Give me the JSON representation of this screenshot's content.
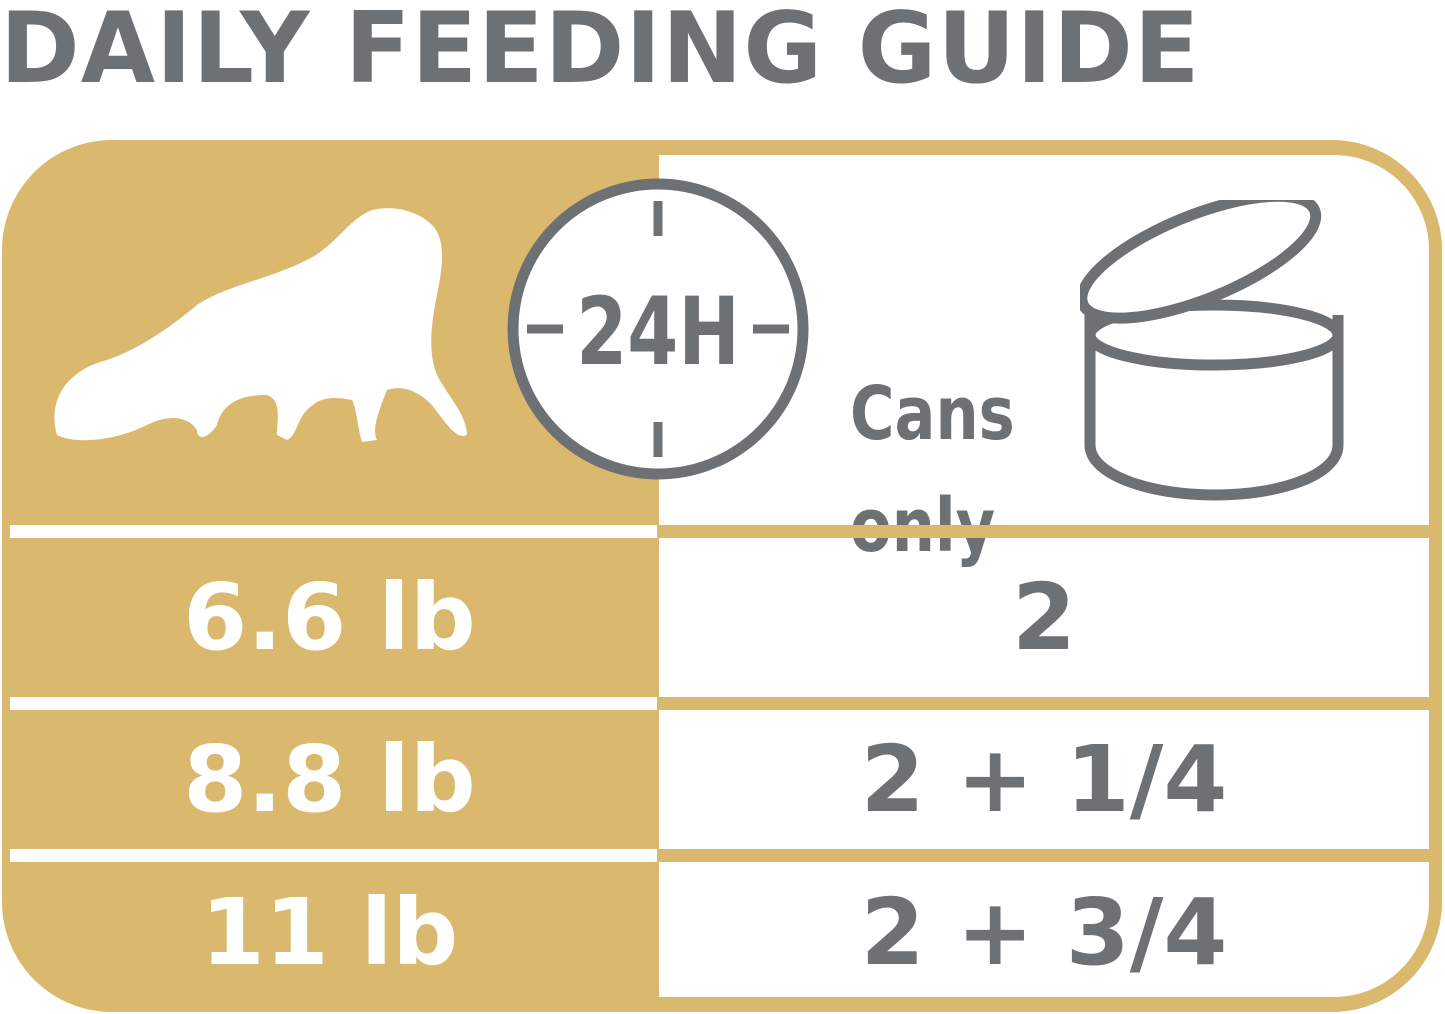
{
  "title": "DAILY FEEDING GUIDE",
  "colors": {
    "gold": "#dab96f",
    "gray": "#6e7174",
    "white": "#ffffff"
  },
  "header": {
    "cat_icon": "cat-silhouette-icon",
    "clock_label": "24H",
    "cans_label_line1": "Cans",
    "cans_label_line2": "only",
    "can_icon": "open-can-icon"
  },
  "rows": [
    {
      "weight": "6.6 lb",
      "cans": "2"
    },
    {
      "weight": "8.8 lb",
      "cans": "2 + 1/4"
    },
    {
      "weight": "11 lb",
      "cans": "2 + 3/4"
    }
  ]
}
